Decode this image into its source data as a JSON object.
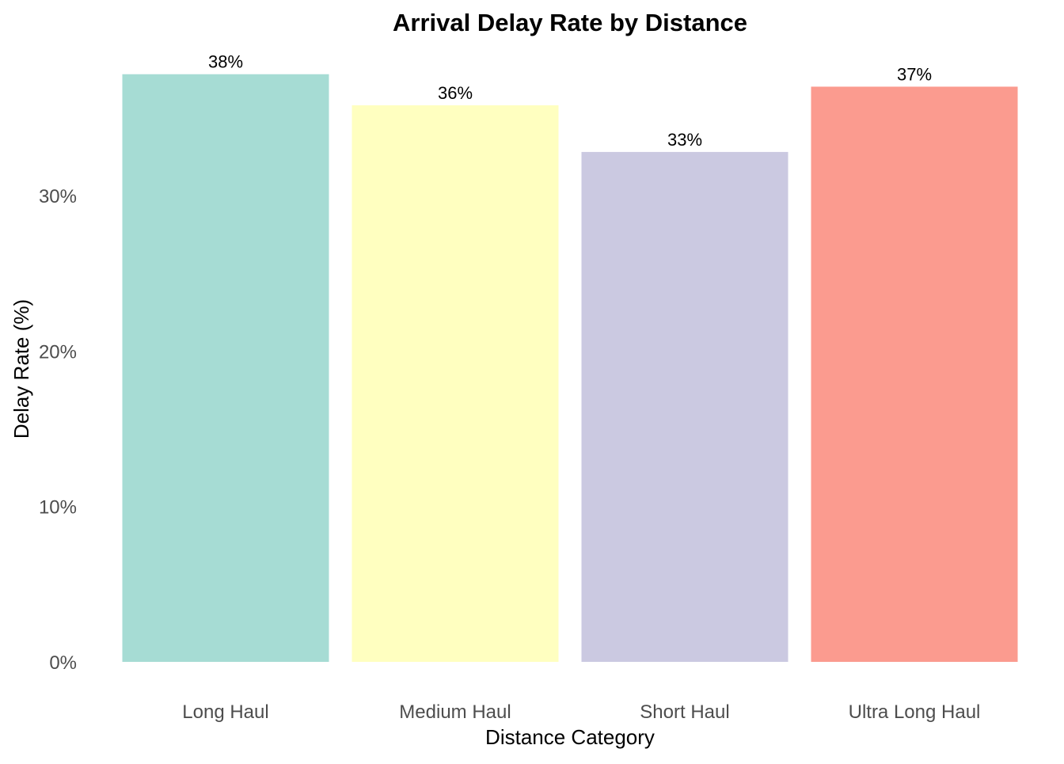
{
  "chart_data": {
    "type": "bar",
    "title": "Arrival Delay Rate by Distance",
    "xlabel": "Distance Category",
    "ylabel": "Delay Rate (%)",
    "categories": [
      "Long Haul",
      "Medium Haul",
      "Short Haul",
      "Ultra Long Haul"
    ],
    "values": [
      37.8,
      35.8,
      32.8,
      37.0
    ],
    "data_labels": [
      "38%",
      "36%",
      "33%",
      "37%"
    ],
    "colors": [
      "#a6dcd4",
      "#ffffc0",
      "#cbc9e1",
      "#fb9b8f"
    ],
    "ylim": [
      0,
      38.5
    ],
    "yticks": [
      0,
      10,
      20,
      30
    ],
    "ytick_labels": [
      "0%",
      "10%",
      "20%",
      "30%"
    ],
    "grid": false,
    "legend": "none"
  }
}
